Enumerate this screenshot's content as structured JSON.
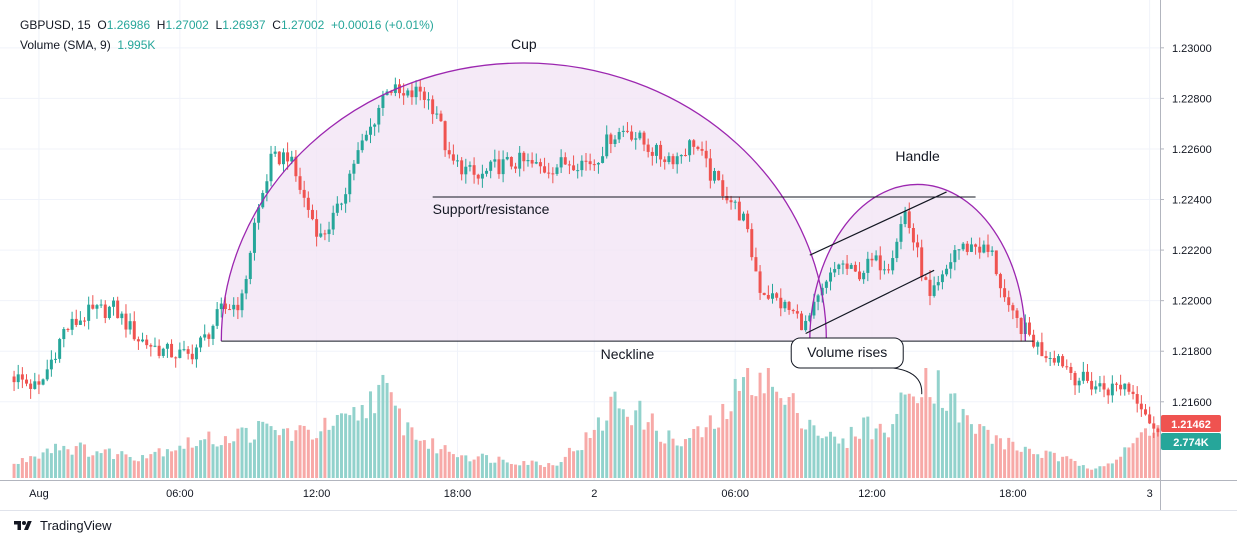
{
  "header": {
    "symbol": "GBPUSD",
    "interval": "15",
    "open_label": "O",
    "open": "1.26986",
    "high_label": "H",
    "high": "1.27002",
    "low_label": "L",
    "low": "1.26937",
    "close_label": "C",
    "close": "1.27002",
    "change": "+0.00016 (+0.01%)",
    "volume_label": "Volume (SMA, 9)",
    "volume_value": "1.995K"
  },
  "footer": {
    "brand": "TradingView"
  },
  "price_tag": "1.21462",
  "volume_tag": "2.774K",
  "colors": {
    "up": "#26a69a",
    "down": "#ef5350",
    "vol_up": "#92d2cc",
    "vol_down": "#f7a9a7",
    "pattern": "#9c27b0",
    "pattern_fill": "#f3e5f5"
  },
  "chart_data": {
    "type": "candlestick",
    "y_axis": {
      "ticks": [
        "1.23000",
        "1.22800",
        "1.22600",
        "1.22400",
        "1.22200",
        "1.22000",
        "1.21800",
        "1.21600"
      ],
      "tick_values": [
        1.23,
        1.228,
        1.226,
        1.224,
        1.222,
        1.22,
        1.218,
        1.216
      ],
      "ylim": [
        1.2135,
        1.2311
      ]
    },
    "x_axis": {
      "ticks": [
        "Aug",
        "06:00",
        "12:00",
        "18:00",
        "2",
        "06:00",
        "12:00",
        "18:00",
        "3"
      ],
      "tick_bars": [
        6,
        40,
        73,
        107,
        140,
        174,
        207,
        241,
        274
      ]
    },
    "annotations": {
      "cup": "Cup",
      "handle": "Handle",
      "support": "Support/resistance",
      "neckline": "Neckline",
      "volume_rises": "Volume rises"
    },
    "levels": {
      "neckline": 1.2184,
      "support": 1.2241
    },
    "price_keypoints": [
      [
        0,
        1.217
      ],
      [
        6,
        1.2165
      ],
      [
        12,
        1.2188
      ],
      [
        18,
        1.2195
      ],
      [
        24,
        1.2197
      ],
      [
        30,
        1.2185
      ],
      [
        36,
        1.218
      ],
      [
        42,
        1.2178
      ],
      [
        46,
        1.2185
      ],
      [
        50,
        1.2196
      ],
      [
        55,
        1.22
      ],
      [
        58,
        1.223
      ],
      [
        62,
        1.2255
      ],
      [
        66,
        1.2258
      ],
      [
        70,
        1.224
      ],
      [
        74,
        1.2225
      ],
      [
        78,
        1.2235
      ],
      [
        82,
        1.2255
      ],
      [
        86,
        1.2268
      ],
      [
        90,
        1.2285
      ],
      [
        94,
        1.228
      ],
      [
        98,
        1.2283
      ],
      [
        102,
        1.2275
      ],
      [
        105,
        1.2255
      ],
      [
        108,
        1.2253
      ],
      [
        112,
        1.2248
      ],
      [
        116,
        1.2253
      ],
      [
        122,
        1.2255
      ],
      [
        128,
        1.2252
      ],
      [
        134,
        1.2255
      ],
      [
        140,
        1.2255
      ],
      [
        144,
        1.2265
      ],
      [
        148,
        1.2268
      ],
      [
        152,
        1.2262
      ],
      [
        156,
        1.2257
      ],
      [
        160,
        1.2257
      ],
      [
        164,
        1.2263
      ],
      [
        168,
        1.225
      ],
      [
        172,
        1.2242
      ],
      [
        176,
        1.2232
      ],
      [
        180,
        1.2205
      ],
      [
        184,
        1.22
      ],
      [
        188,
        1.2195
      ],
      [
        191,
        1.219
      ],
      [
        195,
        1.2203
      ],
      [
        199,
        1.2215
      ],
      [
        203,
        1.221
      ],
      [
        207,
        1.2215
      ],
      [
        211,
        1.2215
      ],
      [
        215,
        1.2235
      ],
      [
        218,
        1.2218
      ],
      [
        221,
        1.22
      ],
      [
        224,
        1.2208
      ],
      [
        227,
        1.222
      ],
      [
        232,
        1.2222
      ],
      [
        236,
        1.2218
      ],
      [
        240,
        1.2195
      ],
      [
        244,
        1.2188
      ],
      [
        248,
        1.218
      ],
      [
        252,
        1.2178
      ],
      [
        256,
        1.217
      ],
      [
        260,
        1.2167
      ],
      [
        264,
        1.2165
      ],
      [
        268,
        1.2167
      ],
      [
        272,
        1.216
      ],
      [
        276,
        1.2146
      ]
    ],
    "volume_keypoints": [
      [
        0,
        0.6
      ],
      [
        10,
        1.5
      ],
      [
        20,
        1.2
      ],
      [
        30,
        1.0
      ],
      [
        40,
        1.5
      ],
      [
        50,
        1.8
      ],
      [
        60,
        2.2
      ],
      [
        70,
        2.0
      ],
      [
        80,
        2.5
      ],
      [
        84,
        3.0
      ],
      [
        88,
        4.2
      ],
      [
        94,
        2.5
      ],
      [
        100,
        1.5
      ],
      [
        110,
        1.0
      ],
      [
        120,
        0.8
      ],
      [
        130,
        0.6
      ],
      [
        140,
        2.0
      ],
      [
        145,
        3.5
      ],
      [
        150,
        3.0
      ],
      [
        160,
        1.5
      ],
      [
        170,
        2.5
      ],
      [
        175,
        4.0
      ],
      [
        180,
        5.0
      ],
      [
        185,
        3.5
      ],
      [
        190,
        3.0
      ],
      [
        195,
        2.0
      ],
      [
        200,
        1.5
      ],
      [
        205,
        2.5
      ],
      [
        210,
        2.0
      ],
      [
        215,
        3.5
      ],
      [
        219,
        4.8
      ],
      [
        224,
        4.0
      ],
      [
        230,
        2.5
      ],
      [
        240,
        1.5
      ],
      [
        250,
        1.0
      ],
      [
        260,
        0.5
      ],
      [
        266,
        0.8
      ],
      [
        270,
        1.5
      ],
      [
        276,
        2.774
      ]
    ],
    "volume_max": 5.0
  }
}
